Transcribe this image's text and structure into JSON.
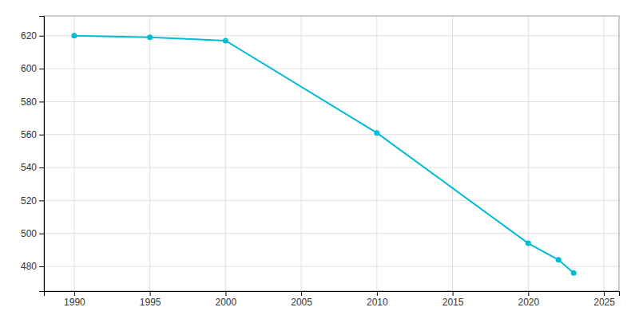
{
  "chart_data": {
    "type": "line",
    "x": [
      1990,
      1995,
      2000,
      2010,
      2020,
      2022,
      2023
    ],
    "values": [
      620,
      619,
      617,
      561,
      494,
      484,
      476
    ],
    "color": "#00BCD4",
    "marker": "circle",
    "xlim": [
      1988,
      2026
    ],
    "ylim": [
      465,
      632
    ],
    "xticks": [
      1990,
      1995,
      2000,
      2005,
      2010,
      2015,
      2020,
      2025
    ],
    "yticks": [
      480,
      500,
      520,
      540,
      560,
      580,
      600,
      620
    ],
    "grid": true
  }
}
